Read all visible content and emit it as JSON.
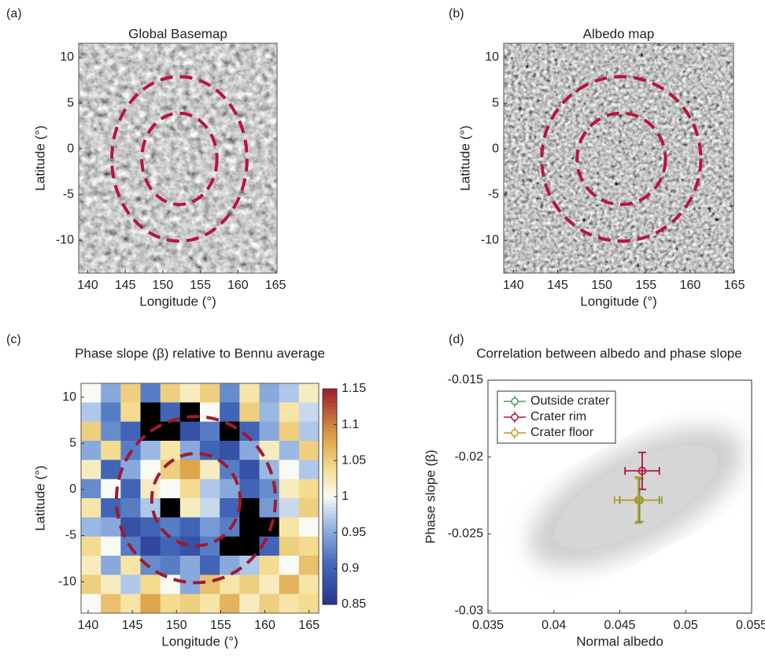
{
  "chart_data": [
    {
      "type": "image",
      "label": "(a)",
      "title": "Global Basemap",
      "xlabel": "Longitude (°)",
      "ylabel": "Latitude (°)",
      "xlim": [
        138.8,
        165.2
      ],
      "ylim": [
        -13.6,
        11.55
      ],
      "xticks": [
        140,
        145,
        150,
        155,
        160,
        165
      ],
      "yticks": [
        10,
        5,
        0,
        -5,
        -10
      ],
      "circles": [
        {
          "cx": 152.2,
          "cy": -1.1,
          "r": 9
        },
        {
          "cx": 152.2,
          "cy": -1.1,
          "r": 5
        }
      ],
      "circle_color": "#b5163d"
    },
    {
      "type": "image",
      "label": "(b)",
      "title": "Albedo map",
      "xlabel": "Longitude (°)",
      "ylabel": "Latitude (°)",
      "xlim": [
        138.9,
        164.9
      ],
      "ylim": [
        -13.6,
        11.55
      ],
      "xticks": [
        140,
        145,
        150,
        155,
        160,
        165
      ],
      "yticks": [
        10,
        5,
        0,
        -5,
        -10
      ],
      "circles": [
        {
          "cx": 152.2,
          "cy": -1.1,
          "r": 9
        },
        {
          "cx": 152.2,
          "cy": -1.1,
          "r": 5
        }
      ],
      "circle_color": "#b5163d"
    },
    {
      "type": "heatmap",
      "label": "(c)",
      "title": "Phase slope (β) relative to Bennu average",
      "xlabel": "Longitude (°)",
      "ylabel": "Latitude (°)",
      "xlim": [
        139.2,
        166.1
      ],
      "ylim": [
        -13.4,
        11.5
      ],
      "xticks": [
        140,
        145,
        150,
        155,
        160,
        165
      ],
      "yticks": [
        10,
        5,
        0,
        -5,
        -10
      ],
      "values": [
        [
          1.0,
          0.95,
          1.05,
          0.92,
          1.05,
          1.02,
          1.05,
          0.93,
          1.03,
          0.95,
          0.97,
          1.02
        ],
        [
          0.97,
          0.92,
          1.04,
          null,
          0.9,
          null,
          1.0,
          0.9,
          1.05,
          0.96,
          1.03,
          0.98
        ],
        [
          1.05,
          0.93,
          0.9,
          null,
          null,
          0.88,
          0.92,
          null,
          0.9,
          0.95,
          1.05,
          0.97
        ],
        [
          0.95,
          1.04,
          0.92,
          0.96,
          1.03,
          0.95,
          0.9,
          0.88,
          0.95,
          1.02,
          0.96,
          1.05
        ],
        [
          1.02,
          0.9,
          0.95,
          1.0,
          1.05,
          1.08,
          1.02,
          0.92,
          0.88,
          0.96,
          1.0,
          0.97
        ],
        [
          0.93,
          1.0,
          0.9,
          1.02,
          1.0,
          1.04,
          0.97,
          0.95,
          0.9,
          0.93,
          1.02,
          1.04
        ],
        [
          1.03,
          0.9,
          0.92,
          0.97,
          null,
          1.02,
          0.98,
          0.9,
          null,
          0.94,
          0.98,
          1.05
        ],
        [
          0.96,
          0.95,
          0.88,
          0.9,
          0.92,
          0.9,
          0.94,
          0.92,
          null,
          null,
          1.03,
          1.0
        ],
        [
          1.04,
          1.0,
          0.92,
          0.87,
          0.9,
          0.88,
          0.92,
          null,
          null,
          0.9,
          1.05,
          1.04
        ],
        [
          1.02,
          0.95,
          1.03,
          0.93,
          0.92,
          0.95,
          0.9,
          0.95,
          0.97,
          1.04,
          1.0,
          1.06
        ],
        [
          1.05,
          1.02,
          0.97,
          1.04,
          1.0,
          0.95,
          1.06,
          1.03,
          1.05,
          1.02,
          1.07,
          1.03
        ],
        [
          1.0,
          1.06,
          1.03,
          1.08,
          1.04,
          1.05,
          1.03,
          1.07,
          1.02,
          1.05,
          1.03,
          1.04
        ]
      ],
      "clim": [
        0.85,
        1.15
      ],
      "cticks": [
        1.15,
        1.1,
        1.05,
        1,
        0.95,
        0.9,
        0.85
      ],
      "circles": [
        {
          "cx": 152.2,
          "cy": -1.1,
          "r": 9
        },
        {
          "cx": 152.2,
          "cy": -1.1,
          "r": 5
        }
      ],
      "circle_color": "#9e1b2f"
    },
    {
      "type": "errorbar",
      "label": "(d)",
      "title": "Correlation between albedo and phase slope",
      "xlabel": "Normal albedo",
      "ylabel": "Phase slope (β)",
      "xlim": [
        0.035,
        0.055
      ],
      "ylim": [
        -0.03015,
        -0.015
      ],
      "xticks": [
        0.035,
        0.04,
        0.045,
        0.05,
        0.055
      ],
      "yticks": [
        -0.015,
        -0.02,
        -0.025,
        -0.03
      ],
      "series": [
        {
          "name": "Outside crater",
          "color": "#4f9a55",
          "x": 0.0465,
          "y": -0.0228,
          "xerr": 0.0015,
          "yerr": 0.0014
        },
        {
          "name": "Crater rim",
          "color": "#b0163c",
          "x": 0.0467,
          "y": -0.0209,
          "xerr": 0.0013,
          "yerr": 0.0012
        },
        {
          "name": "Crater floor",
          "color": "#c49a1c",
          "x": 0.0464,
          "y": -0.0228,
          "xerr": 0.0018,
          "yerr": 0.0015
        }
      ]
    }
  ]
}
